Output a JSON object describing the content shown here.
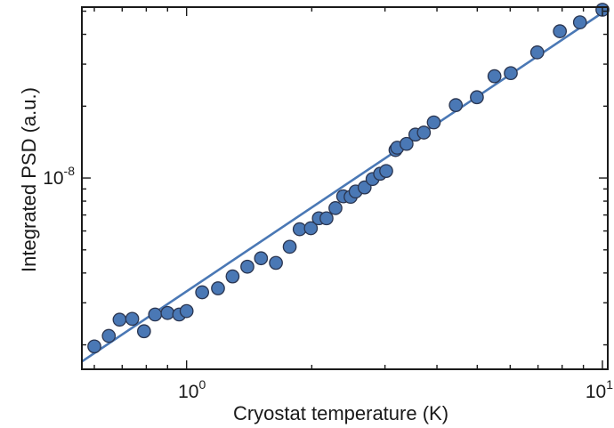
{
  "chart_data": {
    "type": "scatter",
    "xlabel": "Cryostat temperature (K)",
    "ylabel": "Integrated PSD (a.u.)",
    "x_scale": "log",
    "y_scale": "log",
    "xlim": [
      0.56,
      10.3
    ],
    "ylim": [
      1.58e-09,
      5.2e-08
    ],
    "x_ticks": [
      {
        "value": 1,
        "base": "10",
        "exp": "0"
      },
      {
        "value": 10,
        "base": "10",
        "exp": "1"
      }
    ],
    "y_ticks": [
      {
        "value": 1e-08,
        "base": "10",
        "exp": "-8"
      }
    ],
    "grid": false,
    "marker_color": "#4a78b5",
    "marker_edge_color": "#2a3550",
    "line_color": "#4a78b5",
    "series": [
      {
        "kind": "points",
        "x": [
          0.6,
          0.65,
          0.69,
          0.74,
          0.79,
          0.84,
          0.9,
          0.96,
          1.0,
          1.09,
          1.19,
          1.29,
          1.4,
          1.51,
          1.64,
          1.77,
          1.87,
          1.99,
          2.08,
          2.17,
          2.28,
          2.38,
          2.48,
          2.55,
          2.68,
          2.8,
          2.92,
          3.02,
          3.18,
          3.21,
          3.38,
          3.55,
          3.72,
          3.93,
          4.44,
          4.99,
          5.5,
          6.02,
          6.97,
          7.9,
          8.83,
          10.0
        ],
        "y": [
          1.97e-09,
          2.18e-09,
          2.55e-09,
          2.57e-09,
          2.28e-09,
          2.68e-09,
          2.72e-09,
          2.68e-09,
          2.77e-09,
          3.32e-09,
          3.45e-09,
          3.87e-09,
          4.25e-09,
          4.61e-09,
          4.41e-09,
          5.15e-09,
          6.1e-09,
          6.16e-09,
          6.78e-09,
          6.78e-09,
          7.48e-09,
          8.38e-09,
          8.34e-09,
          8.78e-09,
          9.13e-09,
          9.9e-09,
          1.042e-08,
          1.07e-08,
          1.31e-08,
          1.34e-08,
          1.39e-08,
          1.52e-08,
          1.55e-08,
          1.71e-08,
          2.02e-08,
          2.18e-08,
          2.67e-08,
          2.75e-08,
          3.36e-08,
          4.12e-08,
          4.49e-08,
          5.07e-08
        ]
      },
      {
        "kind": "fit-line",
        "x": [
          0.56,
          10.3
        ],
        "y": [
          1.703e-09,
          5.1e-08
        ]
      }
    ]
  }
}
